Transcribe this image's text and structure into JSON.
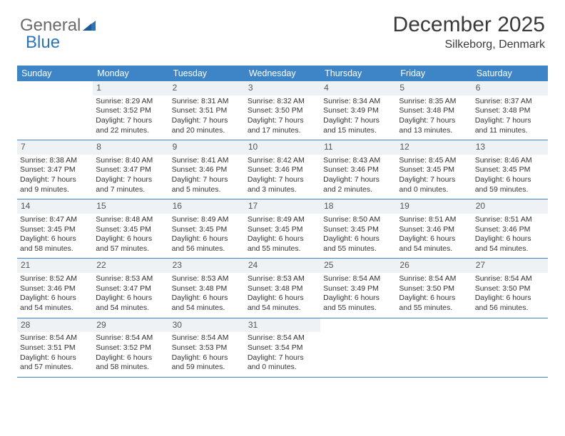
{
  "logo": {
    "text1": "General",
    "text2": "Blue"
  },
  "header": {
    "title": "December 2025",
    "location": "Silkeborg, Denmark"
  },
  "colors": {
    "header_bg": "#3d85c6",
    "header_fg": "#ffffff",
    "row_border": "#3d85c6",
    "daynum_bg": "#eef2f5",
    "text": "#333333",
    "logo_gray": "#6a6a6a",
    "logo_blue": "#2f73b5"
  },
  "dow": [
    "Sunday",
    "Monday",
    "Tuesday",
    "Wednesday",
    "Thursday",
    "Friday",
    "Saturday"
  ],
  "weeks": [
    [
      {
        "n": "",
        "empty": true
      },
      {
        "n": "1",
        "sr": "Sunrise: 8:29 AM",
        "ss": "Sunset: 3:52 PM",
        "dl": "Daylight: 7 hours and 22 minutes."
      },
      {
        "n": "2",
        "sr": "Sunrise: 8:31 AM",
        "ss": "Sunset: 3:51 PM",
        "dl": "Daylight: 7 hours and 20 minutes."
      },
      {
        "n": "3",
        "sr": "Sunrise: 8:32 AM",
        "ss": "Sunset: 3:50 PM",
        "dl": "Daylight: 7 hours and 17 minutes."
      },
      {
        "n": "4",
        "sr": "Sunrise: 8:34 AM",
        "ss": "Sunset: 3:49 PM",
        "dl": "Daylight: 7 hours and 15 minutes."
      },
      {
        "n": "5",
        "sr": "Sunrise: 8:35 AM",
        "ss": "Sunset: 3:48 PM",
        "dl": "Daylight: 7 hours and 13 minutes."
      },
      {
        "n": "6",
        "sr": "Sunrise: 8:37 AM",
        "ss": "Sunset: 3:48 PM",
        "dl": "Daylight: 7 hours and 11 minutes."
      }
    ],
    [
      {
        "n": "7",
        "sr": "Sunrise: 8:38 AM",
        "ss": "Sunset: 3:47 PM",
        "dl": "Daylight: 7 hours and 9 minutes."
      },
      {
        "n": "8",
        "sr": "Sunrise: 8:40 AM",
        "ss": "Sunset: 3:47 PM",
        "dl": "Daylight: 7 hours and 7 minutes."
      },
      {
        "n": "9",
        "sr": "Sunrise: 8:41 AM",
        "ss": "Sunset: 3:46 PM",
        "dl": "Daylight: 7 hours and 5 minutes."
      },
      {
        "n": "10",
        "sr": "Sunrise: 8:42 AM",
        "ss": "Sunset: 3:46 PM",
        "dl": "Daylight: 7 hours and 3 minutes."
      },
      {
        "n": "11",
        "sr": "Sunrise: 8:43 AM",
        "ss": "Sunset: 3:46 PM",
        "dl": "Daylight: 7 hours and 2 minutes."
      },
      {
        "n": "12",
        "sr": "Sunrise: 8:45 AM",
        "ss": "Sunset: 3:45 PM",
        "dl": "Daylight: 7 hours and 0 minutes."
      },
      {
        "n": "13",
        "sr": "Sunrise: 8:46 AM",
        "ss": "Sunset: 3:45 PM",
        "dl": "Daylight: 6 hours and 59 minutes."
      }
    ],
    [
      {
        "n": "14",
        "sr": "Sunrise: 8:47 AM",
        "ss": "Sunset: 3:45 PM",
        "dl": "Daylight: 6 hours and 58 minutes."
      },
      {
        "n": "15",
        "sr": "Sunrise: 8:48 AM",
        "ss": "Sunset: 3:45 PM",
        "dl": "Daylight: 6 hours and 57 minutes."
      },
      {
        "n": "16",
        "sr": "Sunrise: 8:49 AM",
        "ss": "Sunset: 3:45 PM",
        "dl": "Daylight: 6 hours and 56 minutes."
      },
      {
        "n": "17",
        "sr": "Sunrise: 8:49 AM",
        "ss": "Sunset: 3:45 PM",
        "dl": "Daylight: 6 hours and 55 minutes."
      },
      {
        "n": "18",
        "sr": "Sunrise: 8:50 AM",
        "ss": "Sunset: 3:45 PM",
        "dl": "Daylight: 6 hours and 55 minutes."
      },
      {
        "n": "19",
        "sr": "Sunrise: 8:51 AM",
        "ss": "Sunset: 3:46 PM",
        "dl": "Daylight: 6 hours and 54 minutes."
      },
      {
        "n": "20",
        "sr": "Sunrise: 8:51 AM",
        "ss": "Sunset: 3:46 PM",
        "dl": "Daylight: 6 hours and 54 minutes."
      }
    ],
    [
      {
        "n": "21",
        "sr": "Sunrise: 8:52 AM",
        "ss": "Sunset: 3:46 PM",
        "dl": "Daylight: 6 hours and 54 minutes."
      },
      {
        "n": "22",
        "sr": "Sunrise: 8:53 AM",
        "ss": "Sunset: 3:47 PM",
        "dl": "Daylight: 6 hours and 54 minutes."
      },
      {
        "n": "23",
        "sr": "Sunrise: 8:53 AM",
        "ss": "Sunset: 3:48 PM",
        "dl": "Daylight: 6 hours and 54 minutes."
      },
      {
        "n": "24",
        "sr": "Sunrise: 8:53 AM",
        "ss": "Sunset: 3:48 PM",
        "dl": "Daylight: 6 hours and 54 minutes."
      },
      {
        "n": "25",
        "sr": "Sunrise: 8:54 AM",
        "ss": "Sunset: 3:49 PM",
        "dl": "Daylight: 6 hours and 55 minutes."
      },
      {
        "n": "26",
        "sr": "Sunrise: 8:54 AM",
        "ss": "Sunset: 3:50 PM",
        "dl": "Daylight: 6 hours and 55 minutes."
      },
      {
        "n": "27",
        "sr": "Sunrise: 8:54 AM",
        "ss": "Sunset: 3:50 PM",
        "dl": "Daylight: 6 hours and 56 minutes."
      }
    ],
    [
      {
        "n": "28",
        "sr": "Sunrise: 8:54 AM",
        "ss": "Sunset: 3:51 PM",
        "dl": "Daylight: 6 hours and 57 minutes."
      },
      {
        "n": "29",
        "sr": "Sunrise: 8:54 AM",
        "ss": "Sunset: 3:52 PM",
        "dl": "Daylight: 6 hours and 58 minutes."
      },
      {
        "n": "30",
        "sr": "Sunrise: 8:54 AM",
        "ss": "Sunset: 3:53 PM",
        "dl": "Daylight: 6 hours and 59 minutes."
      },
      {
        "n": "31",
        "sr": "Sunrise: 8:54 AM",
        "ss": "Sunset: 3:54 PM",
        "dl": "Daylight: 7 hours and 0 minutes."
      },
      {
        "n": "",
        "empty": true
      },
      {
        "n": "",
        "empty": true
      },
      {
        "n": "",
        "empty": true
      }
    ]
  ]
}
